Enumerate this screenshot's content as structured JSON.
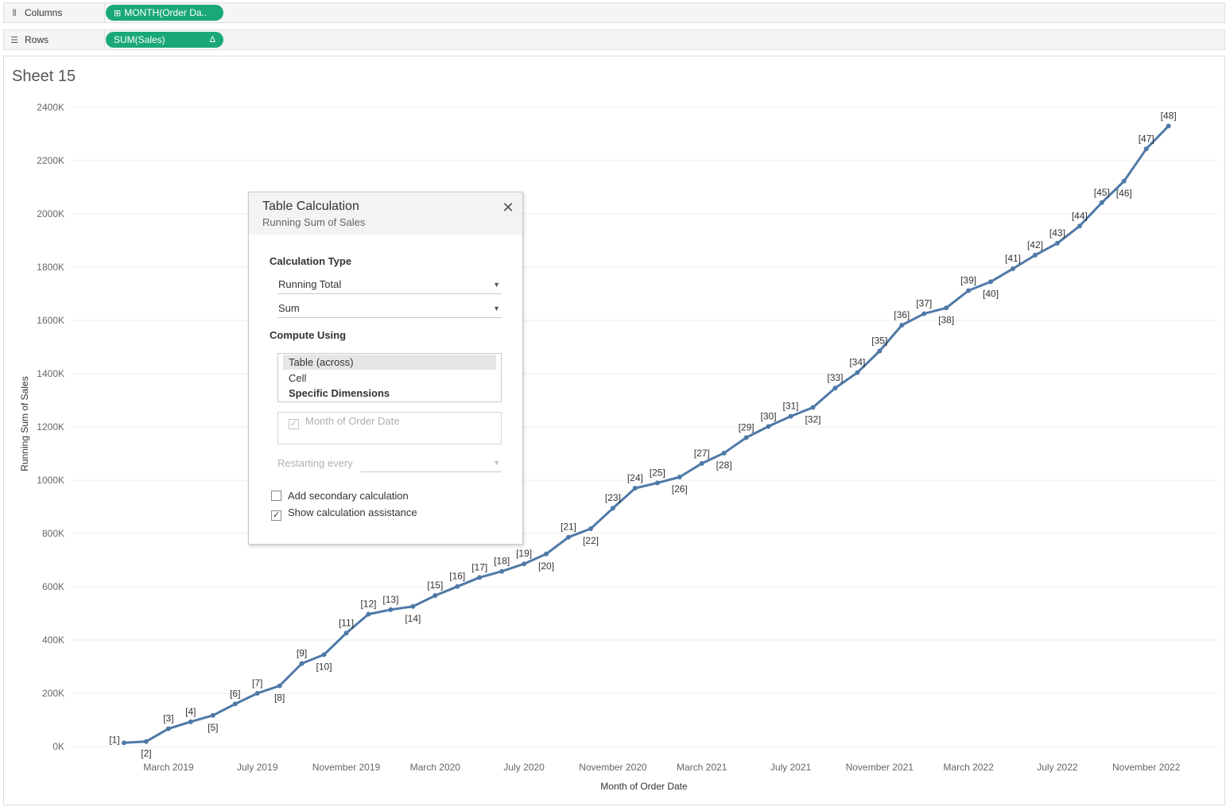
{
  "shelves": {
    "columns": {
      "label": "Columns",
      "icon": "columns-icon",
      "pill_prefix": "⊞",
      "pill": "MONTH(Order Da.."
    },
    "rows": {
      "label": "Rows",
      "icon": "rows-icon",
      "pill": "SUM(Sales)",
      "pill_badge": "Δ"
    }
  },
  "sheet": {
    "title": "Sheet 15"
  },
  "colors": {
    "line": "#4e79a7",
    "pill": "#1aa87b",
    "grid": "#ececec"
  },
  "chart_data": {
    "type": "line",
    "xlabel": "Month of Order Date",
    "ylabel": "Running Sum of Sales",
    "ylim": [
      0,
      2400000
    ],
    "y_ticks": [
      0,
      200000,
      400000,
      600000,
      800000,
      1000000,
      1200000,
      1400000,
      1600000,
      1800000,
      2000000,
      2200000,
      2400000
    ],
    "y_tick_labels": [
      "0K",
      "200K",
      "400K",
      "600K",
      "800K",
      "1000K",
      "1200K",
      "1400K",
      "1600K",
      "1800K",
      "2000K",
      "2200K",
      "2400K"
    ],
    "x_tick_labels": [
      "March 2019",
      "July 2019",
      "November 2019",
      "March 2020",
      "July 2020",
      "November 2020",
      "March 2021",
      "July 2021",
      "November 2021",
      "March 2022",
      "July 2022",
      "November 2022"
    ],
    "x_tick_index": [
      3,
      7,
      11,
      15,
      19,
      23,
      27,
      31,
      35,
      39,
      43,
      47
    ],
    "grid": "horizontal",
    "legend": "none",
    "x": [
      "Jan 2019",
      "Feb 2019",
      "Mar 2019",
      "Apr 2019",
      "May 2019",
      "Jun 2019",
      "Jul 2019",
      "Aug 2019",
      "Sep 2019",
      "Oct 2019",
      "Nov 2019",
      "Dec 2019",
      "Jan 2020",
      "Feb 2020",
      "Mar 2020",
      "Apr 2020",
      "May 2020",
      "Jun 2020",
      "Jul 2020",
      "Aug 2020",
      "Sep 2020",
      "Oct 2020",
      "Nov 2020",
      "Dec 2020",
      "Jan 2021",
      "Feb 2021",
      "Mar 2021",
      "Apr 2021",
      "May 2021",
      "Jun 2021",
      "Jul 2021",
      "Aug 2021",
      "Sep 2021",
      "Oct 2021",
      "Nov 2021",
      "Dec 2021",
      "Jan 2022",
      "Feb 2022",
      "Mar 2022",
      "Apr 2022",
      "May 2022",
      "Jun 2022",
      "Jul 2022",
      "Aug 2022",
      "Sep 2022",
      "Oct 2022",
      "Nov 2022",
      "Dec 2022"
    ],
    "values": [
      14000,
      19000,
      67000,
      93000,
      117000,
      160000,
      200000,
      228000,
      312000,
      345000,
      426000,
      497000,
      514000,
      526000,
      567000,
      601000,
      635000,
      658000,
      686000,
      723000,
      786000,
      818000,
      895000,
      970000,
      990000,
      1012000,
      1063000,
      1102000,
      1160000,
      1202000,
      1240000,
      1273000,
      1346000,
      1404000,
      1485000,
      1582000,
      1625000,
      1647000,
      1712000,
      1745000,
      1794000,
      1845000,
      1890000,
      1954000,
      2042000,
      2123000,
      2244000,
      2330000
    ],
    "point_labels": [
      "[1]",
      "[2]",
      "[3]",
      "[4]",
      "[5]",
      "[6]",
      "[7]",
      "[8]",
      "[9]",
      "[10]",
      "[11]",
      "[12]",
      "[13]",
      "[14]",
      "[15]",
      "[16]",
      "[17]",
      "[18]",
      "[19]",
      "[20]",
      "[21]",
      "[22]",
      "[23]",
      "[24]",
      "[25]",
      "[26]",
      "[27]",
      "[28]",
      "[29]",
      "[30]",
      "[31]",
      "[32]",
      "[33]",
      "[34]",
      "[35]",
      "[36]",
      "[37]",
      "[38]",
      "[39]",
      "[40]",
      "[41]",
      "[42]",
      "[43]",
      "[44]",
      "[45]",
      "[46]",
      "[47]",
      "[48]"
    ]
  },
  "dialog": {
    "title": "Table Calculation",
    "subtitle": "Running Sum of Sales",
    "close_icon": "close-icon",
    "calc_type_label": "Calculation Type",
    "calc_type_value": "Running Total",
    "aggregation_value": "Sum",
    "compute_using_label": "Compute Using",
    "compute_options": [
      {
        "label": "Table (across)",
        "selected": true
      },
      {
        "label": "Cell",
        "selected": false
      },
      {
        "label": "Specific Dimensions",
        "selected": false
      }
    ],
    "dimension_item": "Month of Order Date",
    "restarting_label": "Restarting every",
    "restarting_value": "",
    "secondary_calc_label": "Add secondary calculation",
    "secondary_calc_checked": false,
    "assistance_label": "Show calculation assistance",
    "assistance_checked": true
  }
}
